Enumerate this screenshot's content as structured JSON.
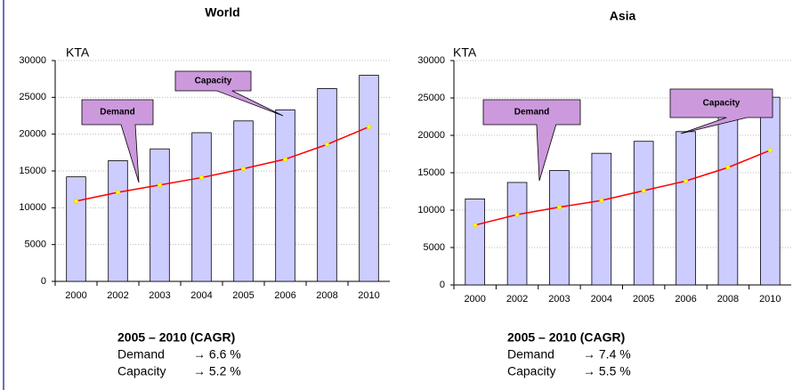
{
  "chart_data": [
    {
      "type": "bar_line",
      "title": "World",
      "y_axis_label": "KTA",
      "categories": [
        "2000",
        "2002",
        "2003",
        "2004",
        "2005",
        "2006",
        "2008",
        "2010"
      ],
      "series": [
        {
          "name": "Capacity",
          "color": "#ccccff",
          "values": [
            14200,
            16400,
            18000,
            20200,
            21800,
            23300,
            26200,
            28000
          ]
        },
        {
          "name": "Demand",
          "color": "#ff0000",
          "values": [
            10900,
            12100,
            13100,
            14100,
            15300,
            16600,
            18600,
            21000
          ]
        }
      ],
      "ylim": [
        0,
        30000
      ],
      "yticks": [
        0,
        5000,
        10000,
        15000,
        20000,
        25000,
        30000
      ],
      "grid": true,
      "cagr_title": "2005 – 2010 (CAGR)",
      "cagr_lines": [
        {
          "label": "Demand",
          "value": "→ 6.6 %"
        },
        {
          "label": "Capacity",
          "value": "→ 5.2 %"
        }
      ]
    },
    {
      "type": "bar_line",
      "title": "Asia",
      "y_axis_label": "KTA",
      "categories": [
        "2000",
        "2002",
        "2003",
        "2004",
        "2005",
        "2006",
        "2008",
        "2010"
      ],
      "series": [
        {
          "name": "Capacity",
          "color": "#ccccff",
          "values": [
            11500,
            13700,
            15300,
            17600,
            19200,
            20500,
            22600,
            25100
          ]
        },
        {
          "name": "Demand",
          "color": "#ff0000",
          "values": [
            8000,
            9400,
            10400,
            11300,
            12600,
            13900,
            15700,
            18000
          ]
        }
      ],
      "ylim": [
        0,
        30000
      ],
      "yticks": [
        0,
        5000,
        10000,
        15000,
        20000,
        25000,
        30000
      ],
      "grid": true,
      "cagr_title": "2005 – 2010 (CAGR)",
      "cagr_lines": [
        {
          "label": "Demand",
          "value": "→ 7.4 %"
        },
        {
          "label": "Capacity",
          "value": "→ 5.5 %"
        }
      ]
    }
  ]
}
